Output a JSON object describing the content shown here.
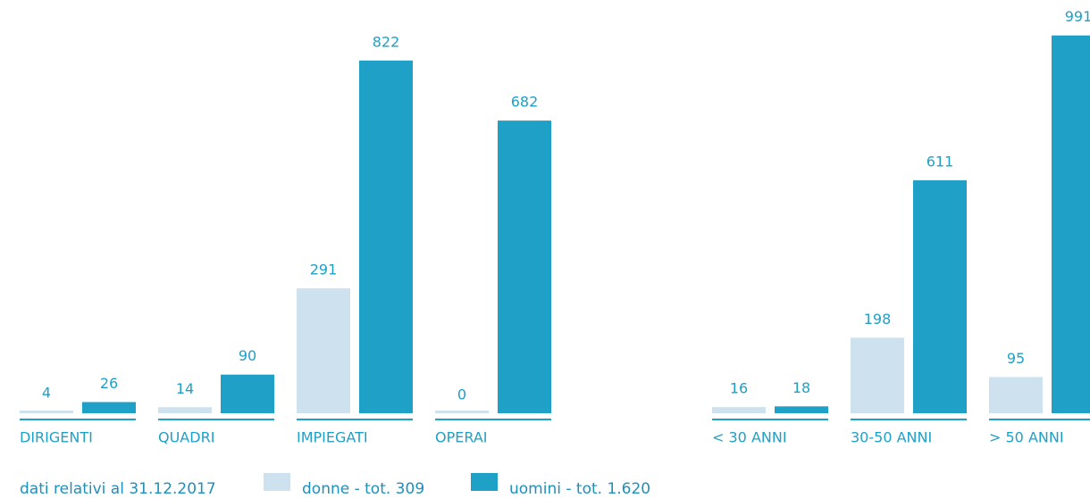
{
  "chart_data": [
    {
      "type": "bar",
      "categories": [
        "DIRIGENTI",
        "QUADRI",
        "IMPIEGATI",
        "OPERAI"
      ],
      "series": [
        {
          "name": "donne - tot. 309",
          "color": "#cde1ee",
          "values": [
            4,
            14,
            291,
            0
          ]
        },
        {
          "name": "uomini - tot. 1.620",
          "color": "#1fa0c6",
          "values": [
            26,
            90,
            822,
            682
          ]
        }
      ],
      "ylim": [
        0,
        963
      ]
    },
    {
      "type": "bar",
      "categories": [
        "< 30 ANNI",
        "30-50 ANNI",
        "> 50 ANNI"
      ],
      "series": [
        {
          "color": "#cde1ee",
          "values": [
            16,
            198,
            95
          ]
        },
        {
          "color": "#1fa0c6",
          "values": [
            18,
            611,
            991
          ]
        }
      ],
      "ylim": [
        0,
        1084
      ]
    }
  ],
  "note": "dati relativi al 31.12.2017"
}
